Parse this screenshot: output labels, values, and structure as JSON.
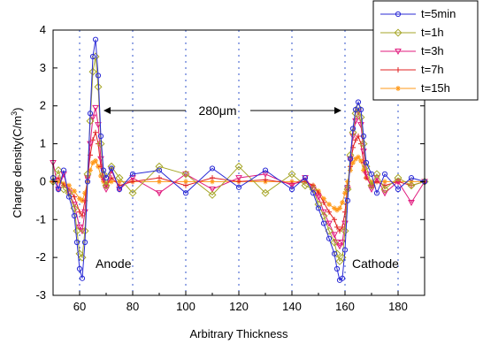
{
  "chart_data": {
    "type": "line",
    "title": "",
    "xlabel": "Arbitrary Thickness",
    "ylabel_main": "Charge density(C/m",
    "ylabel_sup": "3",
    "ylabel_close": ")",
    "xlim": [
      50,
      190
    ],
    "ylim": [
      -3,
      4
    ],
    "xticks": [
      60,
      80,
      100,
      120,
      140,
      160,
      180
    ],
    "yticks": [
      -3,
      -2,
      -1,
      0,
      1,
      2,
      3,
      4
    ],
    "grid": "vertical dotted at x ticks",
    "legend_position": "top-right",
    "annotations": {
      "distance_label": "280μm",
      "anode_label": "Anode",
      "cathode_label": "Cathode"
    },
    "series": [
      {
        "name": "t=5min",
        "color": "#2b2bd6",
        "marker": "circle",
        "x": [
          50,
          52,
          54,
          56,
          58,
          59,
          60,
          61,
          62,
          63,
          64,
          65,
          66,
          67,
          68,
          69,
          70,
          72,
          75,
          80,
          90,
          100,
          110,
          120,
          130,
          140,
          145,
          148,
          150,
          152,
          154,
          156,
          157,
          158,
          159,
          160,
          161,
          162,
          163,
          164,
          165,
          166,
          167,
          168,
          170,
          172,
          175,
          180,
          185,
          190
        ],
        "y": [
          0.1,
          -0.2,
          0.3,
          -0.4,
          -0.9,
          -1.6,
          -2.3,
          -2.55,
          -1.6,
          0.0,
          1.8,
          3.3,
          3.75,
          2.8,
          1.2,
          0.3,
          0.1,
          0.35,
          -0.2,
          0.2,
          0.3,
          -0.3,
          0.35,
          -0.15,
          0.3,
          -0.2,
          0.1,
          -0.3,
          -0.7,
          -1.1,
          -1.5,
          -1.9,
          -2.3,
          -2.6,
          -2.55,
          -1.8,
          -0.5,
          0.6,
          1.4,
          1.9,
          2.1,
          1.9,
          1.2,
          0.5,
          0.2,
          -0.3,
          0.2,
          -0.2,
          0.1,
          0.0
        ]
      },
      {
        "name": "t=1h",
        "color": "#a6a628",
        "marker": "diamond",
        "x": [
          50,
          52,
          54,
          56,
          58,
          59,
          60,
          61,
          62,
          63,
          64,
          65,
          66,
          67,
          68,
          69,
          70,
          72,
          75,
          80,
          90,
          100,
          110,
          120,
          130,
          140,
          145,
          148,
          150,
          152,
          154,
          156,
          157,
          158,
          159,
          160,
          161,
          162,
          163,
          164,
          165,
          166,
          167,
          168,
          170,
          172,
          175,
          180,
          185,
          190
        ],
        "y": [
          0.0,
          0.3,
          -0.2,
          -0.3,
          -0.7,
          -1.3,
          -1.9,
          -2.0,
          -1.3,
          0.2,
          1.6,
          2.9,
          3.3,
          2.5,
          1.0,
          0.2,
          -0.1,
          0.4,
          0.1,
          -0.3,
          0.4,
          0.2,
          -0.35,
          0.4,
          -0.3,
          0.2,
          -0.1,
          -0.2,
          -0.6,
          -0.9,
          -1.3,
          -1.6,
          -1.9,
          -2.1,
          -2.0,
          -1.3,
          -0.2,
          0.7,
          1.3,
          1.8,
          1.95,
          1.7,
          1.0,
          0.4,
          -0.1,
          0.2,
          -0.2,
          0.1,
          -0.1,
          0.0
        ]
      },
      {
        "name": "t=3h",
        "color": "#e0197d",
        "marker": "triangle-down",
        "x": [
          50,
          52,
          54,
          56,
          58,
          60,
          61,
          62,
          63,
          64,
          65,
          66,
          67,
          68,
          69,
          70,
          72,
          75,
          80,
          90,
          100,
          110,
          120,
          130,
          140,
          145,
          148,
          150,
          152,
          154,
          156,
          157,
          158,
          159,
          160,
          161,
          162,
          163,
          164,
          165,
          166,
          167,
          168,
          170,
          172,
          175,
          180,
          185,
          190
        ],
        "y": [
          0.5,
          -0.2,
          0.2,
          -0.3,
          -0.6,
          -1.2,
          -1.3,
          -0.8,
          0.1,
          1.0,
          1.7,
          1.95,
          1.5,
          0.6,
          0.1,
          -0.2,
          0.3,
          -0.2,
          0.1,
          -0.3,
          0.2,
          -0.2,
          0.1,
          0.2,
          -0.1,
          0.1,
          -0.2,
          -0.4,
          -0.8,
          -1.1,
          -1.4,
          -1.6,
          -1.7,
          -1.6,
          -1.1,
          -0.2,
          0.6,
          1.2,
          1.6,
          1.85,
          1.5,
          0.8,
          0.2,
          -0.2,
          0.1,
          -0.3,
          0.0,
          -0.55,
          0.0
        ]
      },
      {
        "name": "t=7h",
        "color": "#e02020",
        "marker": "plus",
        "x": [
          50,
          52,
          54,
          56,
          58,
          60,
          61,
          62,
          63,
          64,
          65,
          66,
          67,
          68,
          69,
          70,
          72,
          75,
          80,
          90,
          100,
          110,
          120,
          130,
          140,
          145,
          148,
          150,
          152,
          154,
          156,
          157,
          158,
          159,
          160,
          161,
          162,
          163,
          164,
          165,
          166,
          167,
          168,
          170,
          172,
          175,
          180,
          185,
          190
        ],
        "y": [
          0.0,
          0.1,
          -0.1,
          -0.2,
          -0.4,
          -0.8,
          -0.9,
          -0.5,
          0.1,
          0.7,
          1.1,
          1.3,
          1.0,
          0.4,
          0.05,
          -0.1,
          0.1,
          -0.1,
          0.0,
          0.1,
          -0.1,
          0.1,
          0.0,
          0.05,
          -0.05,
          0.0,
          -0.1,
          -0.3,
          -0.55,
          -0.8,
          -1.0,
          -1.2,
          -1.3,
          -1.2,
          -0.8,
          -0.1,
          0.4,
          0.9,
          1.1,
          1.2,
          1.0,
          0.5,
          0.1,
          -0.1,
          0.0,
          -0.1,
          0.0,
          -0.1,
          0.0
        ]
      },
      {
        "name": "t=15h",
        "color": "#ff9a1a",
        "marker": "star",
        "x": [
          50,
          52,
          54,
          56,
          58,
          60,
          61,
          62,
          63,
          64,
          65,
          66,
          67,
          68,
          69,
          70,
          72,
          75,
          80,
          90,
          100,
          110,
          120,
          130,
          140,
          145,
          148,
          150,
          152,
          154,
          156,
          157,
          158,
          159,
          160,
          161,
          162,
          163,
          164,
          165,
          166,
          167,
          168,
          170,
          172,
          175,
          180,
          185,
          190
        ],
        "y": [
          0.0,
          0.0,
          -0.05,
          -0.1,
          -0.25,
          -0.45,
          -0.5,
          -0.3,
          0.0,
          0.3,
          0.5,
          0.55,
          0.4,
          0.15,
          0.0,
          -0.05,
          0.0,
          0.0,
          0.0,
          0.0,
          0.0,
          0.0,
          0.0,
          0.0,
          0.0,
          0.0,
          -0.1,
          -0.25,
          -0.45,
          -0.6,
          -0.7,
          -0.75,
          -0.7,
          -0.55,
          -0.3,
          0.0,
          0.3,
          0.5,
          0.6,
          0.65,
          0.55,
          0.3,
          0.1,
          0.0,
          0.0,
          0.0,
          0.0,
          0.0,
          0.0
        ]
      }
    ]
  }
}
